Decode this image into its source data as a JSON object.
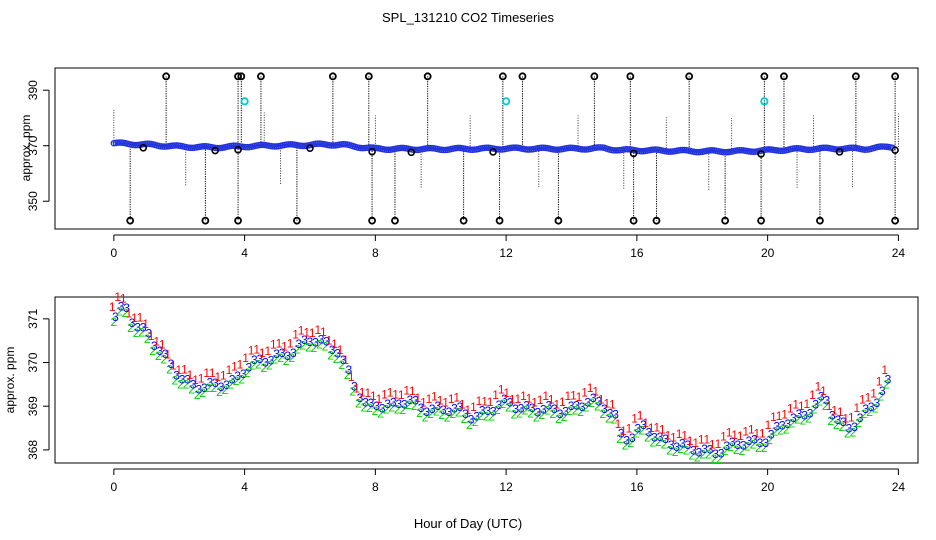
{
  "title": "SPL_131210  CO2 Timeseries",
  "xlabel": "Hour of Day (UTC)",
  "chart_data": [
    {
      "type": "scatter",
      "name": "top-panel",
      "ylabel": "approx. ppm",
      "xlim": [
        -1.8,
        24.6
      ],
      "ylim": [
        340,
        398
      ],
      "xticks": [
        0,
        4,
        8,
        12,
        16,
        20,
        24
      ],
      "xtick_labels": [
        "0",
        "4",
        "8",
        "12",
        "16",
        "20",
        "24"
      ],
      "yticks": [
        350,
        370,
        390
      ],
      "ytick_labels": [
        "350",
        "370",
        "390"
      ],
      "outlier_high_hours": [
        1.6,
        3.8,
        3.9,
        4.5,
        6.7,
        7.8,
        9.6,
        11.9,
        12.5,
        14.7,
        15.8,
        17.6,
        19.9,
        20.5,
        22.7,
        23.9
      ],
      "outlier_high_value": 395,
      "outlier_low_hours": [
        0.5,
        2.8,
        3.8,
        5.6,
        7.9,
        8.6,
        10.7,
        11.8,
        13.6,
        15.9,
        16.6,
        18.7,
        19.8,
        21.6,
        23.9
      ],
      "outlier_low_value": 343,
      "cyan_points": [
        {
          "x": 4.0,
          "y": 386
        },
        {
          "x": 12.0,
          "y": 386
        },
        {
          "x": 19.9,
          "y": 386
        }
      ],
      "series_x": [
        0,
        1,
        2,
        3,
        4,
        5,
        6,
        6.5,
        7,
        7.5,
        8,
        10,
        12,
        14,
        15,
        15.5,
        16,
        18,
        19,
        20,
        21,
        22,
        23,
        23.7
      ],
      "series_y": [
        370.9,
        370.4,
        369.7,
        369.4,
        369.8,
        370.1,
        370.3,
        370.5,
        370.3,
        369.6,
        368.9,
        368.8,
        369.0,
        368.9,
        369.1,
        368.4,
        368.4,
        368.0,
        368.0,
        368.3,
        368.8,
        369.0,
        368.9,
        369.6
      ]
    },
    {
      "type": "scatter",
      "name": "bottom-panel",
      "ylabel": "approx. ppm",
      "xlim": [
        -1.8,
        24.6
      ],
      "ylim": [
        367.7,
        371.5
      ],
      "xticks": [
        0,
        4,
        8,
        12,
        16,
        20,
        24
      ],
      "xtick_labels": [
        "0",
        "4",
        "8",
        "12",
        "16",
        "20",
        "24"
      ],
      "yticks": [
        368,
        369,
        370,
        371
      ],
      "ytick_labels": [
        "368",
        "369",
        "370",
        "371"
      ],
      "legend_symbols": [
        "1",
        "2",
        "3"
      ],
      "series": [
        {
          "name": "1",
          "color": "#ff0000",
          "offset": 0.22
        },
        {
          "name": "2",
          "color": "#00cd00",
          "offset": -0.12
        },
        {
          "name": "3",
          "color": "#0000ff",
          "offset": 0.0
        }
      ],
      "x": [
        0,
        0.3,
        0.6,
        1.0,
        1.3,
        1.6,
        2.0,
        2.4,
        2.8,
        3.2,
        3.6,
        4.0,
        4.5,
        5.0,
        5.5,
        6.0,
        6.4,
        6.8,
        7.1,
        7.4,
        7.7,
        8.0,
        8.5,
        9.0,
        9.5,
        10.0,
        10.5,
        11.0,
        11.5,
        12.0,
        12.5,
        13.0,
        13.5,
        14.0,
        14.5,
        15.0,
        15.3,
        15.5,
        15.8,
        16.2,
        16.6,
        17.0,
        17.5,
        18.0,
        18.5,
        19.0,
        19.5,
        20.0,
        20.5,
        21.0,
        21.3,
        21.7,
        22.0,
        22.4,
        22.8,
        23.2,
        23.7
      ],
      "values": [
        371.0,
        371.3,
        370.9,
        370.7,
        370.3,
        370.0,
        369.7,
        369.5,
        369.4,
        369.5,
        369.6,
        369.9,
        370.0,
        370.2,
        370.3,
        370.5,
        370.5,
        370.3,
        369.8,
        369.3,
        369.0,
        369.1,
        369.0,
        369.1,
        369.0,
        368.9,
        368.9,
        368.8,
        368.9,
        369.1,
        369.0,
        368.9,
        368.9,
        369.0,
        369.1,
        369.0,
        368.8,
        368.3,
        368.3,
        368.5,
        368.3,
        368.2,
        368.0,
        368.0,
        368.0,
        368.1,
        368.2,
        368.3,
        368.6,
        368.8,
        369.0,
        369.2,
        368.7,
        368.5,
        368.8,
        369.0,
        369.6
      ]
    }
  ]
}
